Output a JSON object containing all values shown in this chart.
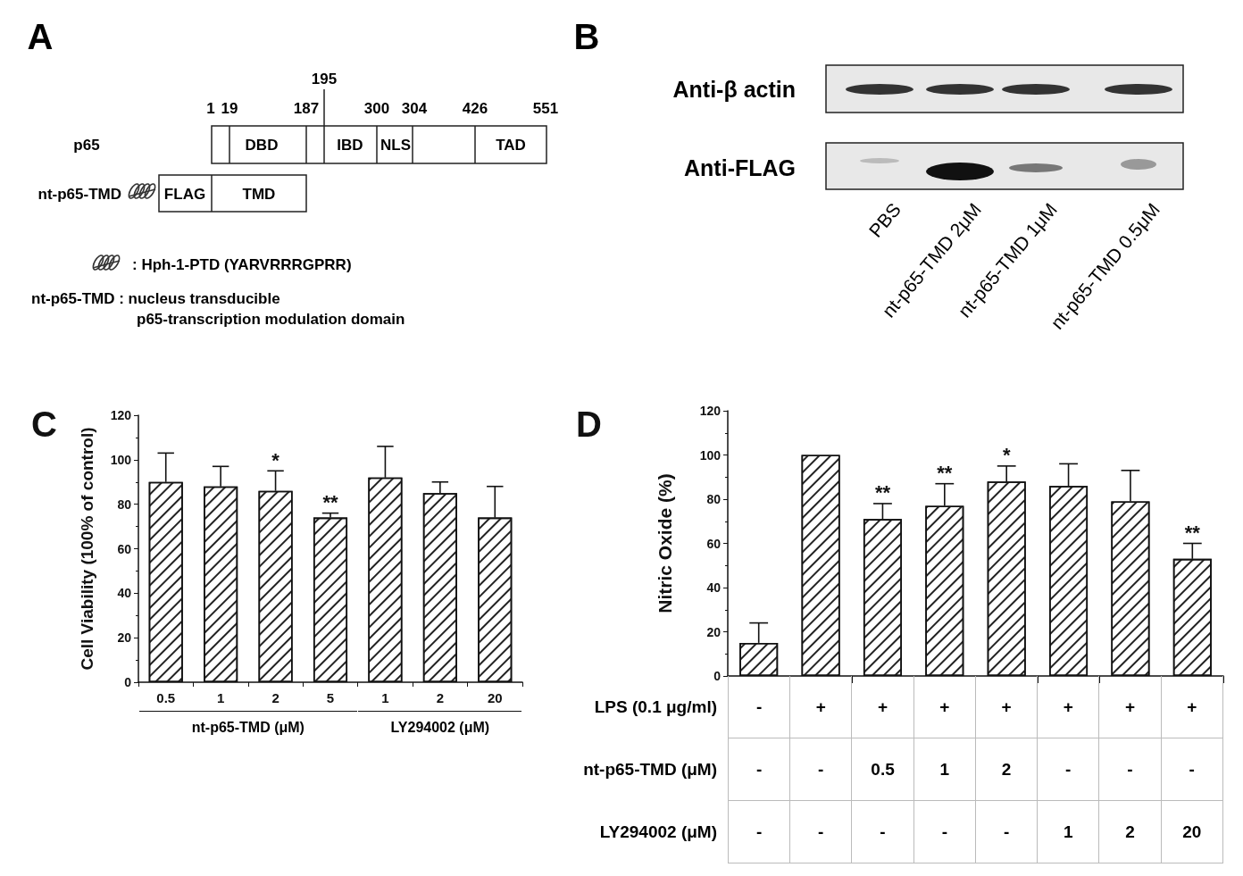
{
  "chart_data": [
    {
      "type": "other",
      "title": "A",
      "annotations": [
        "195",
        "1",
        "19",
        "187",
        "300",
        "304",
        "426",
        "551",
        "p65",
        "DBD",
        "IBD",
        "NLS",
        "TAD",
        "nt-p65-TMD",
        "FLAG",
        "TMD",
        ": Hph-1-PTD (YARVRRRGPRR)",
        "nt-p65-TMD : nucleus transducible",
        "p65-transcription modulation domain"
      ]
    },
    {
      "type": "other",
      "title": "B",
      "annotations": [
        "Anti-β actin",
        "Anti-FLAG",
        "PBS",
        "nt-p65-TMD 2μM",
        "nt-p65-TMD 1μM",
        "nt-p65-TMD 0.5μM"
      ]
    },
    {
      "type": "bar",
      "title": "C",
      "ylabel": "Cell Viability (100% of control)",
      "categories": [
        "0.5",
        "1",
        "2",
        "5",
        "1",
        "2",
        "20"
      ],
      "series": [
        {
          "color": "#ffffff",
          "values": [
            90,
            88,
            86,
            74,
            92,
            85,
            74
          ],
          "errors": [
            13,
            9,
            9,
            2,
            14,
            5,
            14
          ],
          "value_labels": [
            null,
            null,
            "*",
            "**",
            null,
            null,
            null
          ]
        }
      ],
      "ylim": [
        0,
        120
      ],
      "yticks": [
        0,
        20,
        40,
        60,
        80,
        100,
        120
      ],
      "annotations": [
        "nt-p65-TMD (μM)",
        "LY294002 (μM)"
      ]
    },
    {
      "type": "bar",
      "title": "D",
      "ylabel": "Nitric Oxide (%)",
      "categories": [
        null,
        null,
        null,
        null,
        null,
        null,
        null,
        null
      ],
      "series": [
        {
          "color": "#ffffff",
          "values": [
            15,
            100,
            71,
            77,
            88,
            86,
            79,
            53
          ],
          "errors": [
            9,
            null,
            7,
            10,
            7,
            10,
            14,
            7
          ],
          "value_labels": [
            null,
            null,
            "**",
            "**",
            "*",
            null,
            null,
            "**"
          ]
        }
      ],
      "ylim": [
        0,
        120
      ],
      "yticks": [
        0,
        20,
        40,
        60,
        80,
        100,
        120
      ],
      "annotations": [
        "LPS (0.1 μg/ml)",
        "-",
        "+",
        "+",
        "+",
        "+",
        "+",
        "+",
        "+",
        "nt-p65-TMD (μM)",
        "-",
        "-",
        "0.5",
        "1",
        "2",
        "-",
        "-",
        "-",
        "LY294002 (μM)",
        "-",
        "-",
        "-",
        "-",
        "-",
        "1",
        "2",
        "20"
      ]
    }
  ]
}
